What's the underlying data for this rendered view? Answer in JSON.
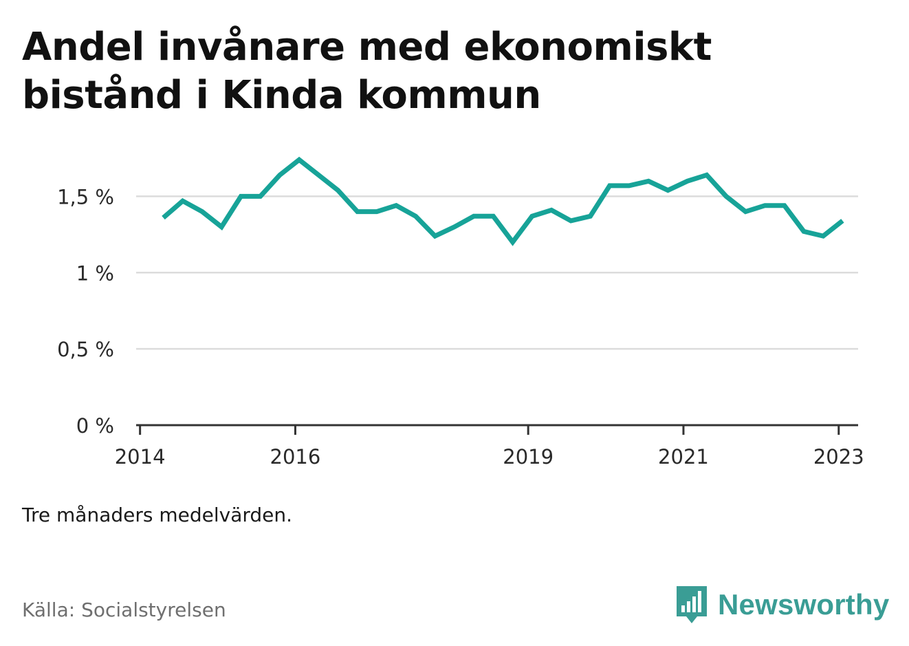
{
  "title": "Andel invånare med ekonomiskt bistånd i Kinda kommun",
  "note": "Tre månaders medelvärden.",
  "source": "Källa: Socialstyrelsen",
  "logo": {
    "text": "Newsworthy",
    "icon": "newsworthy-bar-chart-icon",
    "color": "#3a9d95"
  },
  "colors": {
    "line": "#17a398",
    "grid": "#dcdcdc",
    "axis": "#333333"
  },
  "chart_data": {
    "type": "line",
    "title": "Andel invånare med ekonomiskt bistånd i Kinda kommun",
    "xlabel": "",
    "ylabel": "",
    "ylim": [
      0,
      1.75
    ],
    "xlim": [
      2013.95,
      2023.25
    ],
    "grid": true,
    "y_ticks": [
      {
        "value": 0,
        "label": "0 %"
      },
      {
        "value": 0.5,
        "label": "0,5 %"
      },
      {
        "value": 1,
        "label": "1 %"
      },
      {
        "value": 1.5,
        "label": "1,5 %"
      }
    ],
    "x_ticks": [
      {
        "value": 2014,
        "label": "2014"
      },
      {
        "value": 2016,
        "label": "2016"
      },
      {
        "value": 2019,
        "label": "2019"
      },
      {
        "value": 2021,
        "label": "2021"
      },
      {
        "value": 2023,
        "label": "2023"
      }
    ],
    "series": [
      {
        "x": [
          2014.3,
          2014.55,
          2014.8,
          2015.05,
          2015.3,
          2015.55,
          2015.8,
          2016.05,
          2016.3,
          2016.55,
          2016.8,
          2017.05,
          2017.3,
          2017.55,
          2017.8,
          2018.05,
          2018.3,
          2018.55,
          2018.8,
          2019.05,
          2019.3,
          2019.55,
          2019.8,
          2020.05,
          2020.3,
          2020.55,
          2020.8,
          2021.05,
          2021.3,
          2021.55,
          2021.8,
          2022.05,
          2022.3,
          2022.55,
          2022.8,
          2023.05
        ],
        "values": [
          1.36,
          1.47,
          1.4,
          1.3,
          1.5,
          1.5,
          1.64,
          1.74,
          1.64,
          1.54,
          1.4,
          1.4,
          1.44,
          1.37,
          1.24,
          1.3,
          1.37,
          1.37,
          1.2,
          1.37,
          1.41,
          1.34,
          1.37,
          1.57,
          1.57,
          1.6,
          1.54,
          1.6,
          1.64,
          1.5,
          1.4,
          1.44,
          1.44,
          1.27,
          1.24,
          1.34
        ]
      }
    ]
  }
}
